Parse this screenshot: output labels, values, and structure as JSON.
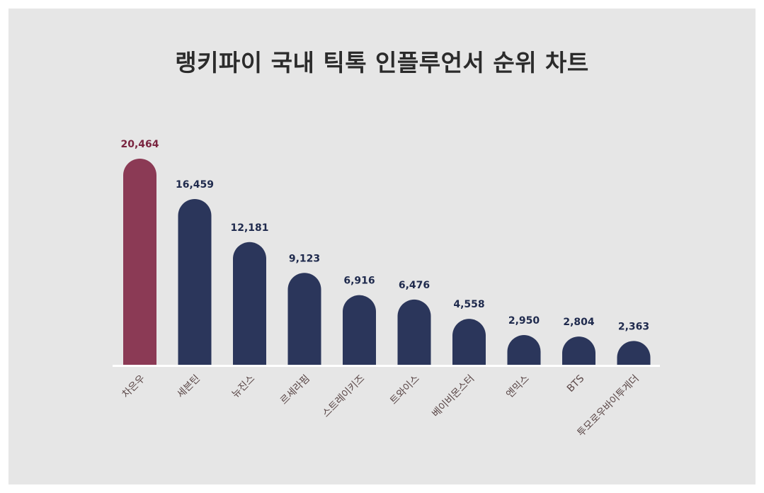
{
  "title": "랭키파이 국내 틱톡 인플루언서 순위 차트",
  "colors": {
    "background": "#e6e6e6",
    "highlight": "#8b3a55",
    "bar": "#2b365b",
    "baseline": "#ffffff",
    "highlight_label": "#7a2540",
    "label": "#1f2a4d",
    "category_label": "#5a4747"
  },
  "chart_data": {
    "type": "bar",
    "title": "랭키파이 국내 틱톡 인플루언서 순위 차트",
    "categories": [
      "차은우",
      "세븐틴",
      "뉴진스",
      "르세라핌",
      "스트레이키즈",
      "트와이스",
      "베이비몬스터",
      "엔믹스",
      "BTS",
      "투모로우바이투게더"
    ],
    "values": [
      20464,
      16459,
      12181,
      9123,
      6916,
      6476,
      4558,
      2950,
      2804,
      2363
    ],
    "value_labels": [
      "20,464",
      "16,459",
      "12,181",
      "9,123",
      "6,916",
      "6,476",
      "4,558",
      "2,950",
      "2,804",
      "2,363"
    ],
    "highlight_index": 0,
    "ylim": [
      0,
      20464
    ],
    "grid": false,
    "legend": "none",
    "xlabel": "",
    "ylabel": ""
  }
}
